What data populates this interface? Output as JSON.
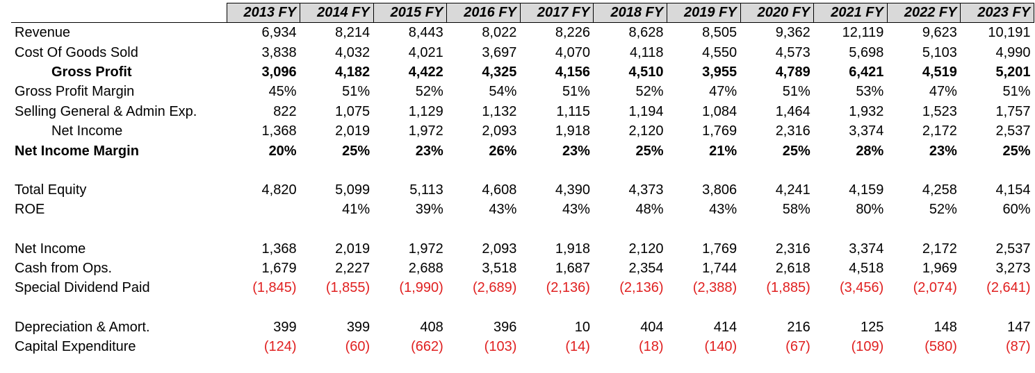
{
  "years": [
    "2013 FY",
    "2014 FY",
    "2015 FY",
    "2016 FY",
    "2017 FY",
    "2018 FY",
    "2019 FY",
    "2020 FY",
    "2021 FY",
    "2022 FY",
    "2023 FY"
  ],
  "rows": [
    {
      "label": "Revenue",
      "values": [
        "6,934",
        "8,214",
        "8,443",
        "8,022",
        "8,226",
        "8,628",
        "8,505",
        "9,362",
        "12,119",
        "9,623",
        "10,191"
      ]
    },
    {
      "label": "Cost Of Goods Sold",
      "values": [
        "3,838",
        "4,032",
        "4,021",
        "3,697",
        "4,070",
        "4,118",
        "4,550",
        "4,573",
        "5,698",
        "5,103",
        "4,990"
      ]
    },
    {
      "label": "Gross Profit",
      "values": [
        "3,096",
        "4,182",
        "4,422",
        "4,325",
        "4,156",
        "4,510",
        "3,955",
        "4,789",
        "6,421",
        "4,519",
        "5,201"
      ]
    },
    {
      "label": "Gross Profit Margin",
      "values": [
        "45%",
        "51%",
        "52%",
        "54%",
        "51%",
        "52%",
        "47%",
        "51%",
        "53%",
        "47%",
        "51%"
      ]
    },
    {
      "label": "Selling General & Admin Exp.",
      "values": [
        "822",
        "1,075",
        "1,129",
        "1,132",
        "1,115",
        "1,194",
        "1,084",
        "1,464",
        "1,932",
        "1,523",
        "1,757"
      ]
    },
    {
      "label": "Net Income",
      "values": [
        "1,368",
        "2,019",
        "1,972",
        "2,093",
        "1,918",
        "2,120",
        "1,769",
        "2,316",
        "3,374",
        "2,172",
        "2,537"
      ]
    },
    {
      "label": "Net Income Margin",
      "values": [
        "20%",
        "25%",
        "23%",
        "26%",
        "23%",
        "25%",
        "21%",
        "25%",
        "28%",
        "23%",
        "25%"
      ]
    },
    {
      "label": "Total Equity",
      "values": [
        "4,820",
        "5,099",
        "5,113",
        "4,608",
        "4,390",
        "4,373",
        "3,806",
        "4,241",
        "4,159",
        "4,258",
        "4,154"
      ]
    },
    {
      "label": "ROE",
      "values": [
        "",
        "41%",
        "39%",
        "43%",
        "43%",
        "48%",
        "43%",
        "58%",
        "80%",
        "52%",
        "60%"
      ]
    },
    {
      "label": "Net Income",
      "values": [
        "1,368",
        "2,019",
        "1,972",
        "2,093",
        "1,918",
        "2,120",
        "1,769",
        "2,316",
        "3,374",
        "2,172",
        "2,537"
      ]
    },
    {
      "label": "Cash from Ops.",
      "values": [
        "1,679",
        "2,227",
        "2,688",
        "3,518",
        "1,687",
        "2,354",
        "1,744",
        "2,618",
        "4,518",
        "1,969",
        "3,273"
      ]
    },
    {
      "label": "Special Dividend Paid",
      "values": [
        "(1,845)",
        "(1,855)",
        "(1,990)",
        "(2,689)",
        "(2,136)",
        "(2,136)",
        "(2,388)",
        "(1,885)",
        "(3,456)",
        "(2,074)",
        "(2,641)"
      ]
    },
    {
      "label": "Depreciation & Amort.",
      "values": [
        "399",
        "399",
        "408",
        "396",
        "10",
        "404",
        "414",
        "216",
        "125",
        "148",
        "147"
      ]
    },
    {
      "label": "Capital Expenditure",
      "values": [
        "(124)",
        "(60)",
        "(662)",
        "(103)",
        "(14)",
        "(18)",
        "(140)",
        "(67)",
        "(109)",
        "(580)",
        "(87)"
      ]
    }
  ],
  "colors": {
    "header_bg": "#d9d9d9",
    "negative": "#e02020",
    "text": "#000000"
  }
}
